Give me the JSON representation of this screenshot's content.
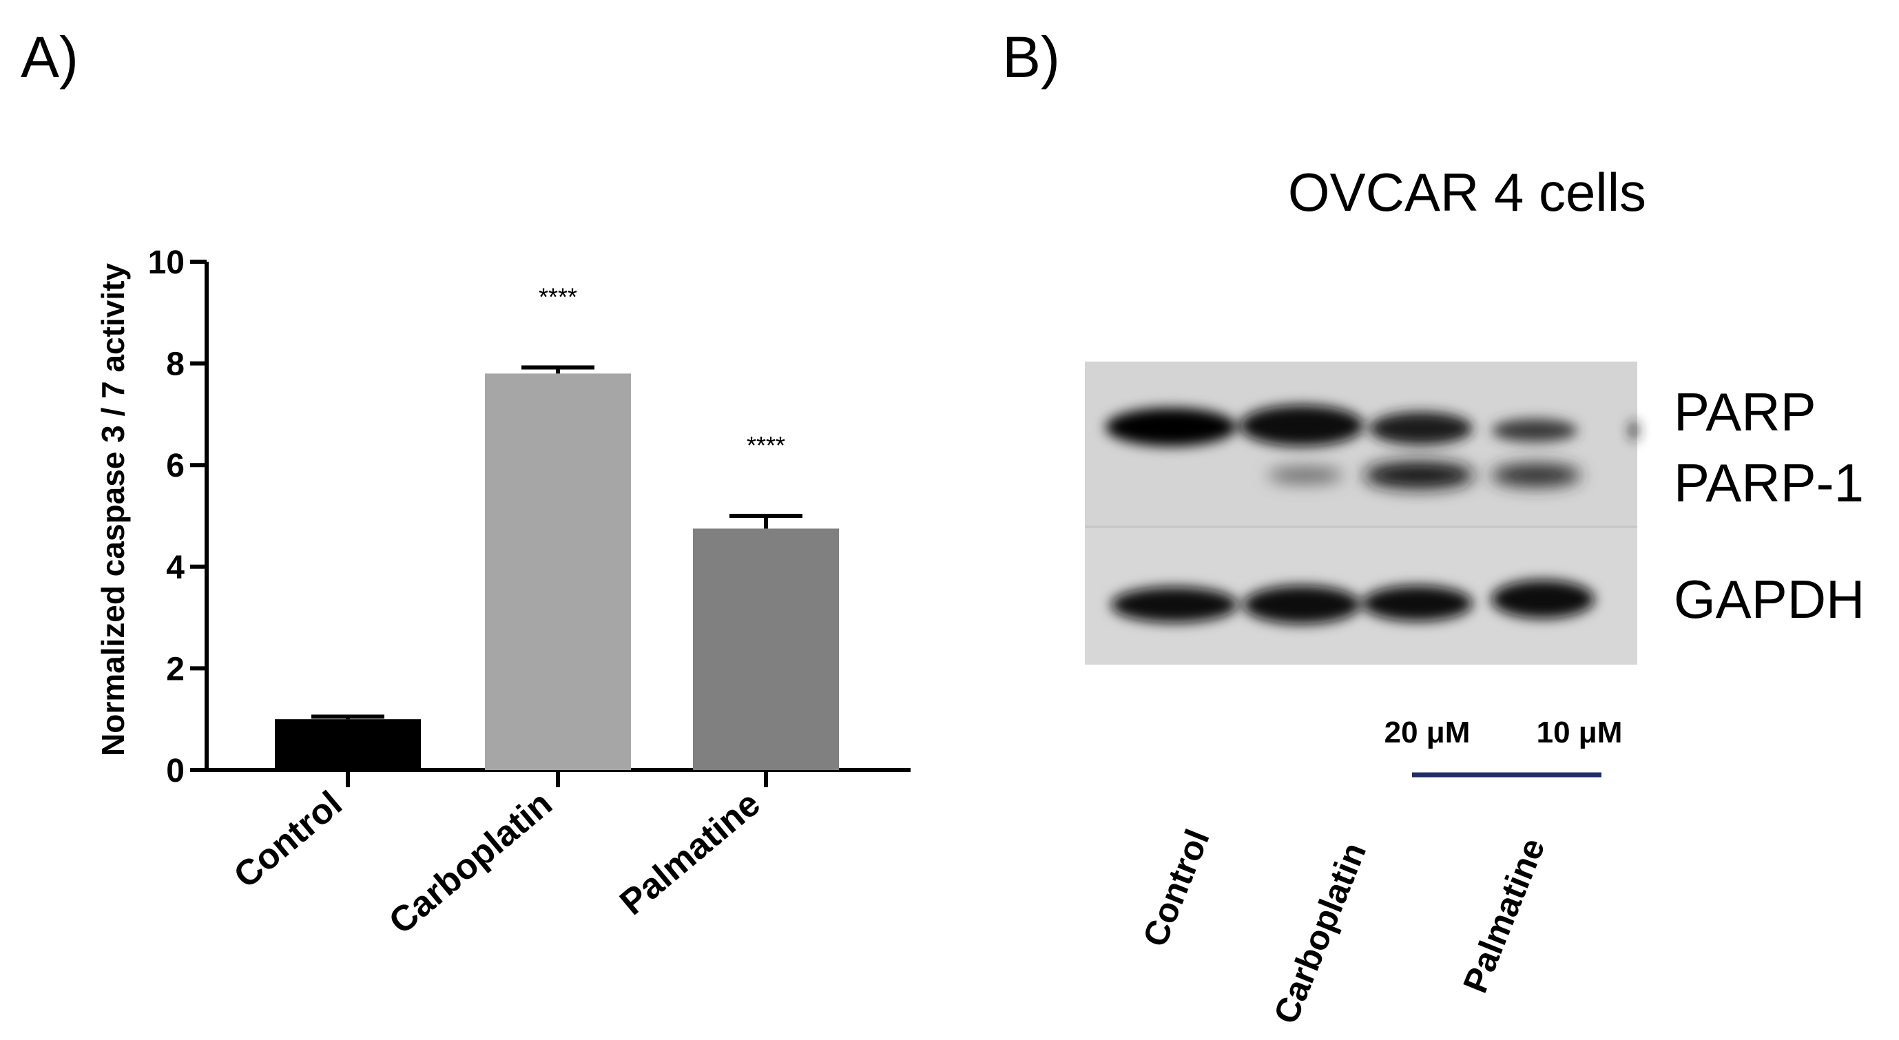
{
  "panel_a": {
    "label": "A)"
  },
  "panel_b": {
    "label": "B)"
  },
  "chart_data": {
    "type": "bar",
    "categories": [
      "Control",
      "Carboplatin",
      "Palmatine"
    ],
    "values": [
      1.0,
      7.8,
      4.75
    ],
    "errors": [
      0.05,
      0.12,
      0.25
    ],
    "significance": [
      "",
      "****",
      "****"
    ],
    "colors": [
      "#000000",
      "#a6a6a6",
      "#808080"
    ],
    "xlabel": "",
    "ylabel": "Normalized caspase 3 / 7 activity",
    "ylim": [
      0,
      10
    ],
    "yticks": [
      0,
      2,
      4,
      6,
      8,
      10
    ],
    "grid": false
  },
  "blot": {
    "title": "OVCAR 4 cells",
    "bands": [
      "PARP",
      "PARP-1",
      "GAPDH"
    ],
    "lanes": [
      "Control",
      "Carboplatin",
      "Palmatine"
    ],
    "concentrations": [
      "20 μM",
      "10 μM"
    ],
    "bracket_color": "#1f2d6b"
  }
}
